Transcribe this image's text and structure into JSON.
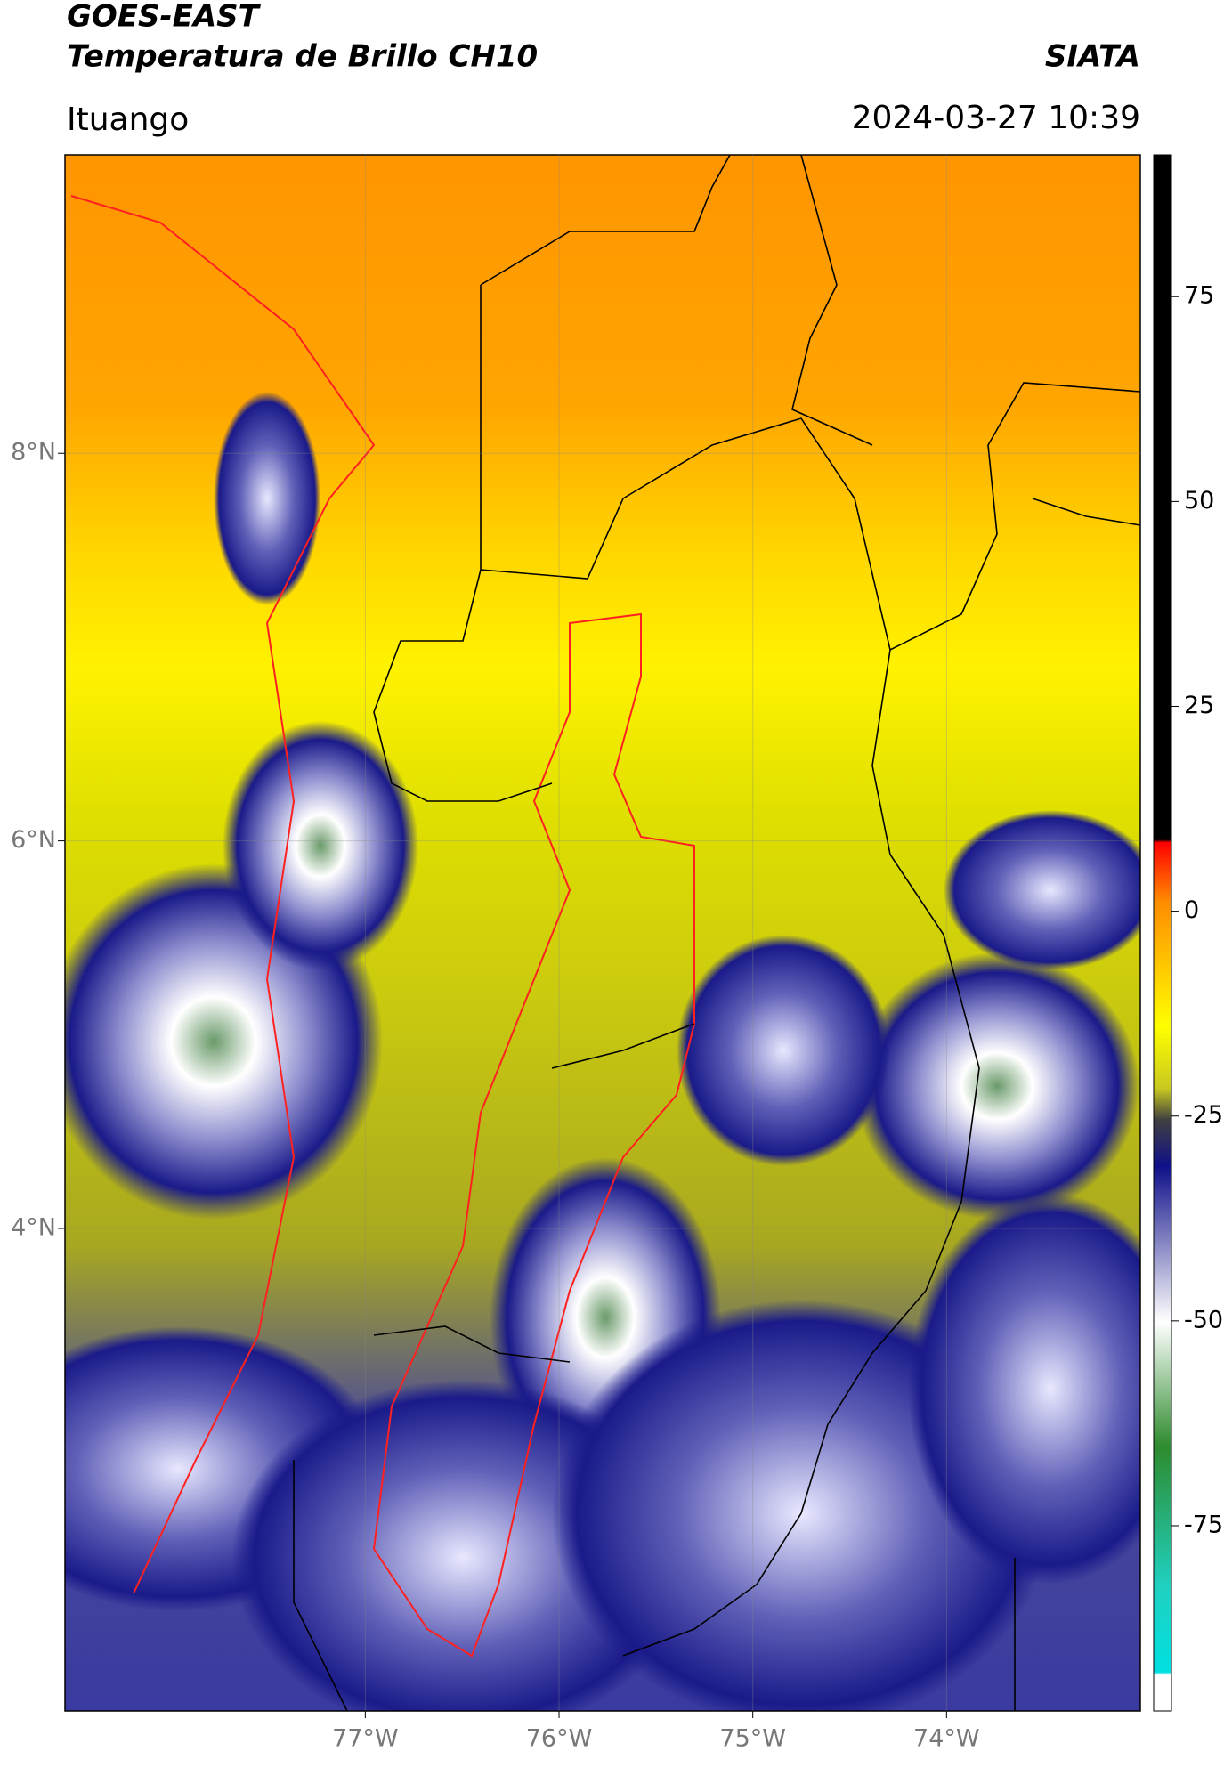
{
  "header": {
    "title_line1": "GOES-EAST",
    "title_line2": "Temperatura de Brillo CH10",
    "source": "SIATA",
    "region": "Ituango",
    "datetime": "2024-03-27 10:39"
  },
  "map": {
    "lat_range": [
      1.51,
      9.54
    ],
    "lon_range": [
      -78.55,
      -73.0
    ],
    "lat_ticks": [
      {
        "value": 8,
        "label": "8°N"
      },
      {
        "value": 6,
        "label": "6°N"
      },
      {
        "value": 4,
        "label": "4°N"
      }
    ],
    "lon_ticks": [
      {
        "value": -77,
        "label": "77°W"
      },
      {
        "value": -76,
        "label": "76°W"
      },
      {
        "value": -75,
        "label": "75°W"
      },
      {
        "value": -74,
        "label": "74°W"
      }
    ]
  },
  "colorbar": {
    "range": [
      -97.6,
      92.3
    ],
    "ticks": [
      75,
      50,
      25,
      0,
      -25,
      -50,
      -75
    ]
  }
}
